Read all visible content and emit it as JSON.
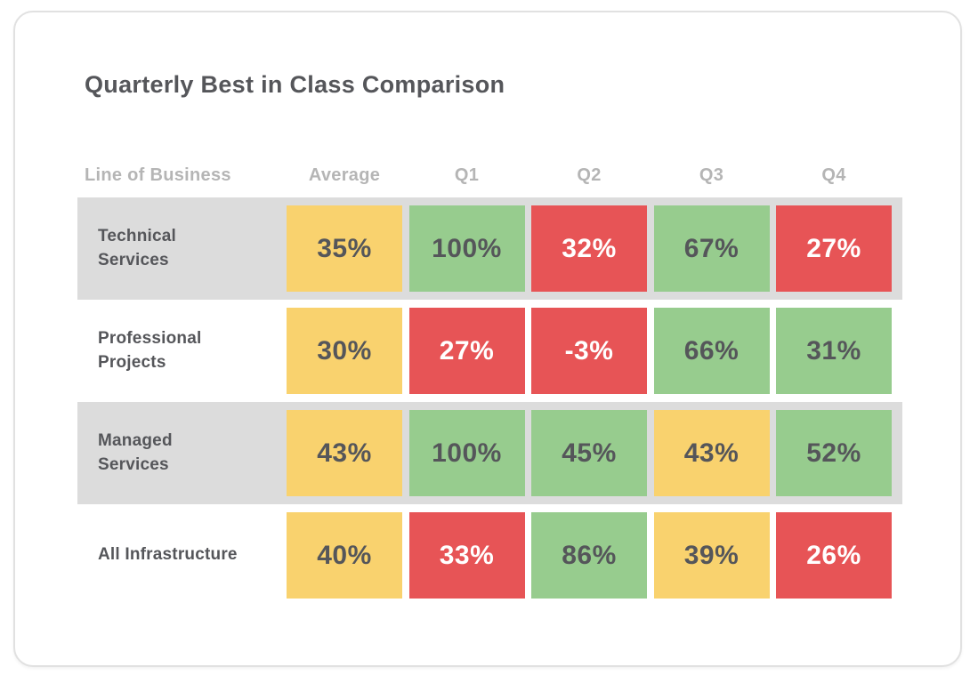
{
  "card": {
    "title": "Quarterly Best in Class Comparison"
  },
  "table": {
    "columns": [
      "Line of Business",
      "Average",
      "Q1",
      "Q2",
      "Q3",
      "Q4"
    ],
    "rows": [
      {
        "label": "Technical Services",
        "cells": [
          {
            "value": "35%",
            "status": "warn"
          },
          {
            "value": "100%",
            "status": "good"
          },
          {
            "value": "32%",
            "status": "bad"
          },
          {
            "value": "67%",
            "status": "good"
          },
          {
            "value": "27%",
            "status": "bad"
          }
        ]
      },
      {
        "label": "Professional Projects",
        "cells": [
          {
            "value": "30%",
            "status": "warn"
          },
          {
            "value": "27%",
            "status": "bad"
          },
          {
            "value": "-3%",
            "status": "bad"
          },
          {
            "value": "66%",
            "status": "good"
          },
          {
            "value": "31%",
            "status": "good"
          }
        ]
      },
      {
        "label": "Managed Services",
        "cells": [
          {
            "value": "43%",
            "status": "warn"
          },
          {
            "value": "100%",
            "status": "good"
          },
          {
            "value": "45%",
            "status": "good"
          },
          {
            "value": "43%",
            "status": "warn"
          },
          {
            "value": "52%",
            "status": "good"
          }
        ]
      },
      {
        "label": "All Infrastructure",
        "cells": [
          {
            "value": "40%",
            "status": "warn"
          },
          {
            "value": "33%",
            "status": "bad"
          },
          {
            "value": "86%",
            "status": "good"
          },
          {
            "value": "39%",
            "status": "warn"
          },
          {
            "value": "26%",
            "status": "bad"
          }
        ]
      }
    ]
  },
  "colors": {
    "good": "#97CC8E",
    "warn": "#F9D26E",
    "bad": "#E75456",
    "row_band": "#DCDCDC",
    "text_dark": "#55565A",
    "text_on_bad": "#FFFFFF",
    "header_text": "#B5B5B5"
  },
  "chart_data": {
    "type": "table",
    "title": "Quarterly Best in Class Comparison",
    "columns": [
      "Line of Business",
      "Average",
      "Q1",
      "Q2",
      "Q3",
      "Q4"
    ],
    "categories": [
      "Technical Services",
      "Professional Projects",
      "Managed Services",
      "All Infrastructure"
    ],
    "series": [
      {
        "name": "Average",
        "values": [
          35,
          30,
          43,
          40
        ]
      },
      {
        "name": "Q1",
        "values": [
          100,
          27,
          100,
          33
        ]
      },
      {
        "name": "Q2",
        "values": [
          32,
          -3,
          45,
          86
        ]
      },
      {
        "name": "Q3",
        "values": [
          67,
          66,
          43,
          39
        ]
      },
      {
        "name": "Q4",
        "values": [
          27,
          31,
          52,
          26
        ]
      }
    ],
    "unit": "%",
    "cell_status_by_row": [
      [
        "warn",
        "good",
        "bad",
        "good",
        "bad"
      ],
      [
        "warn",
        "bad",
        "bad",
        "good",
        "good"
      ],
      [
        "warn",
        "good",
        "good",
        "warn",
        "good"
      ],
      [
        "warn",
        "bad",
        "good",
        "warn",
        "bad"
      ]
    ],
    "status_color_legend": {
      "good": "#97CC8E",
      "warn": "#F9D26E",
      "bad": "#E75456"
    },
    "layout": {
      "legend": "none",
      "grid": "off",
      "banded_rows": [
        0,
        2
      ]
    }
  }
}
